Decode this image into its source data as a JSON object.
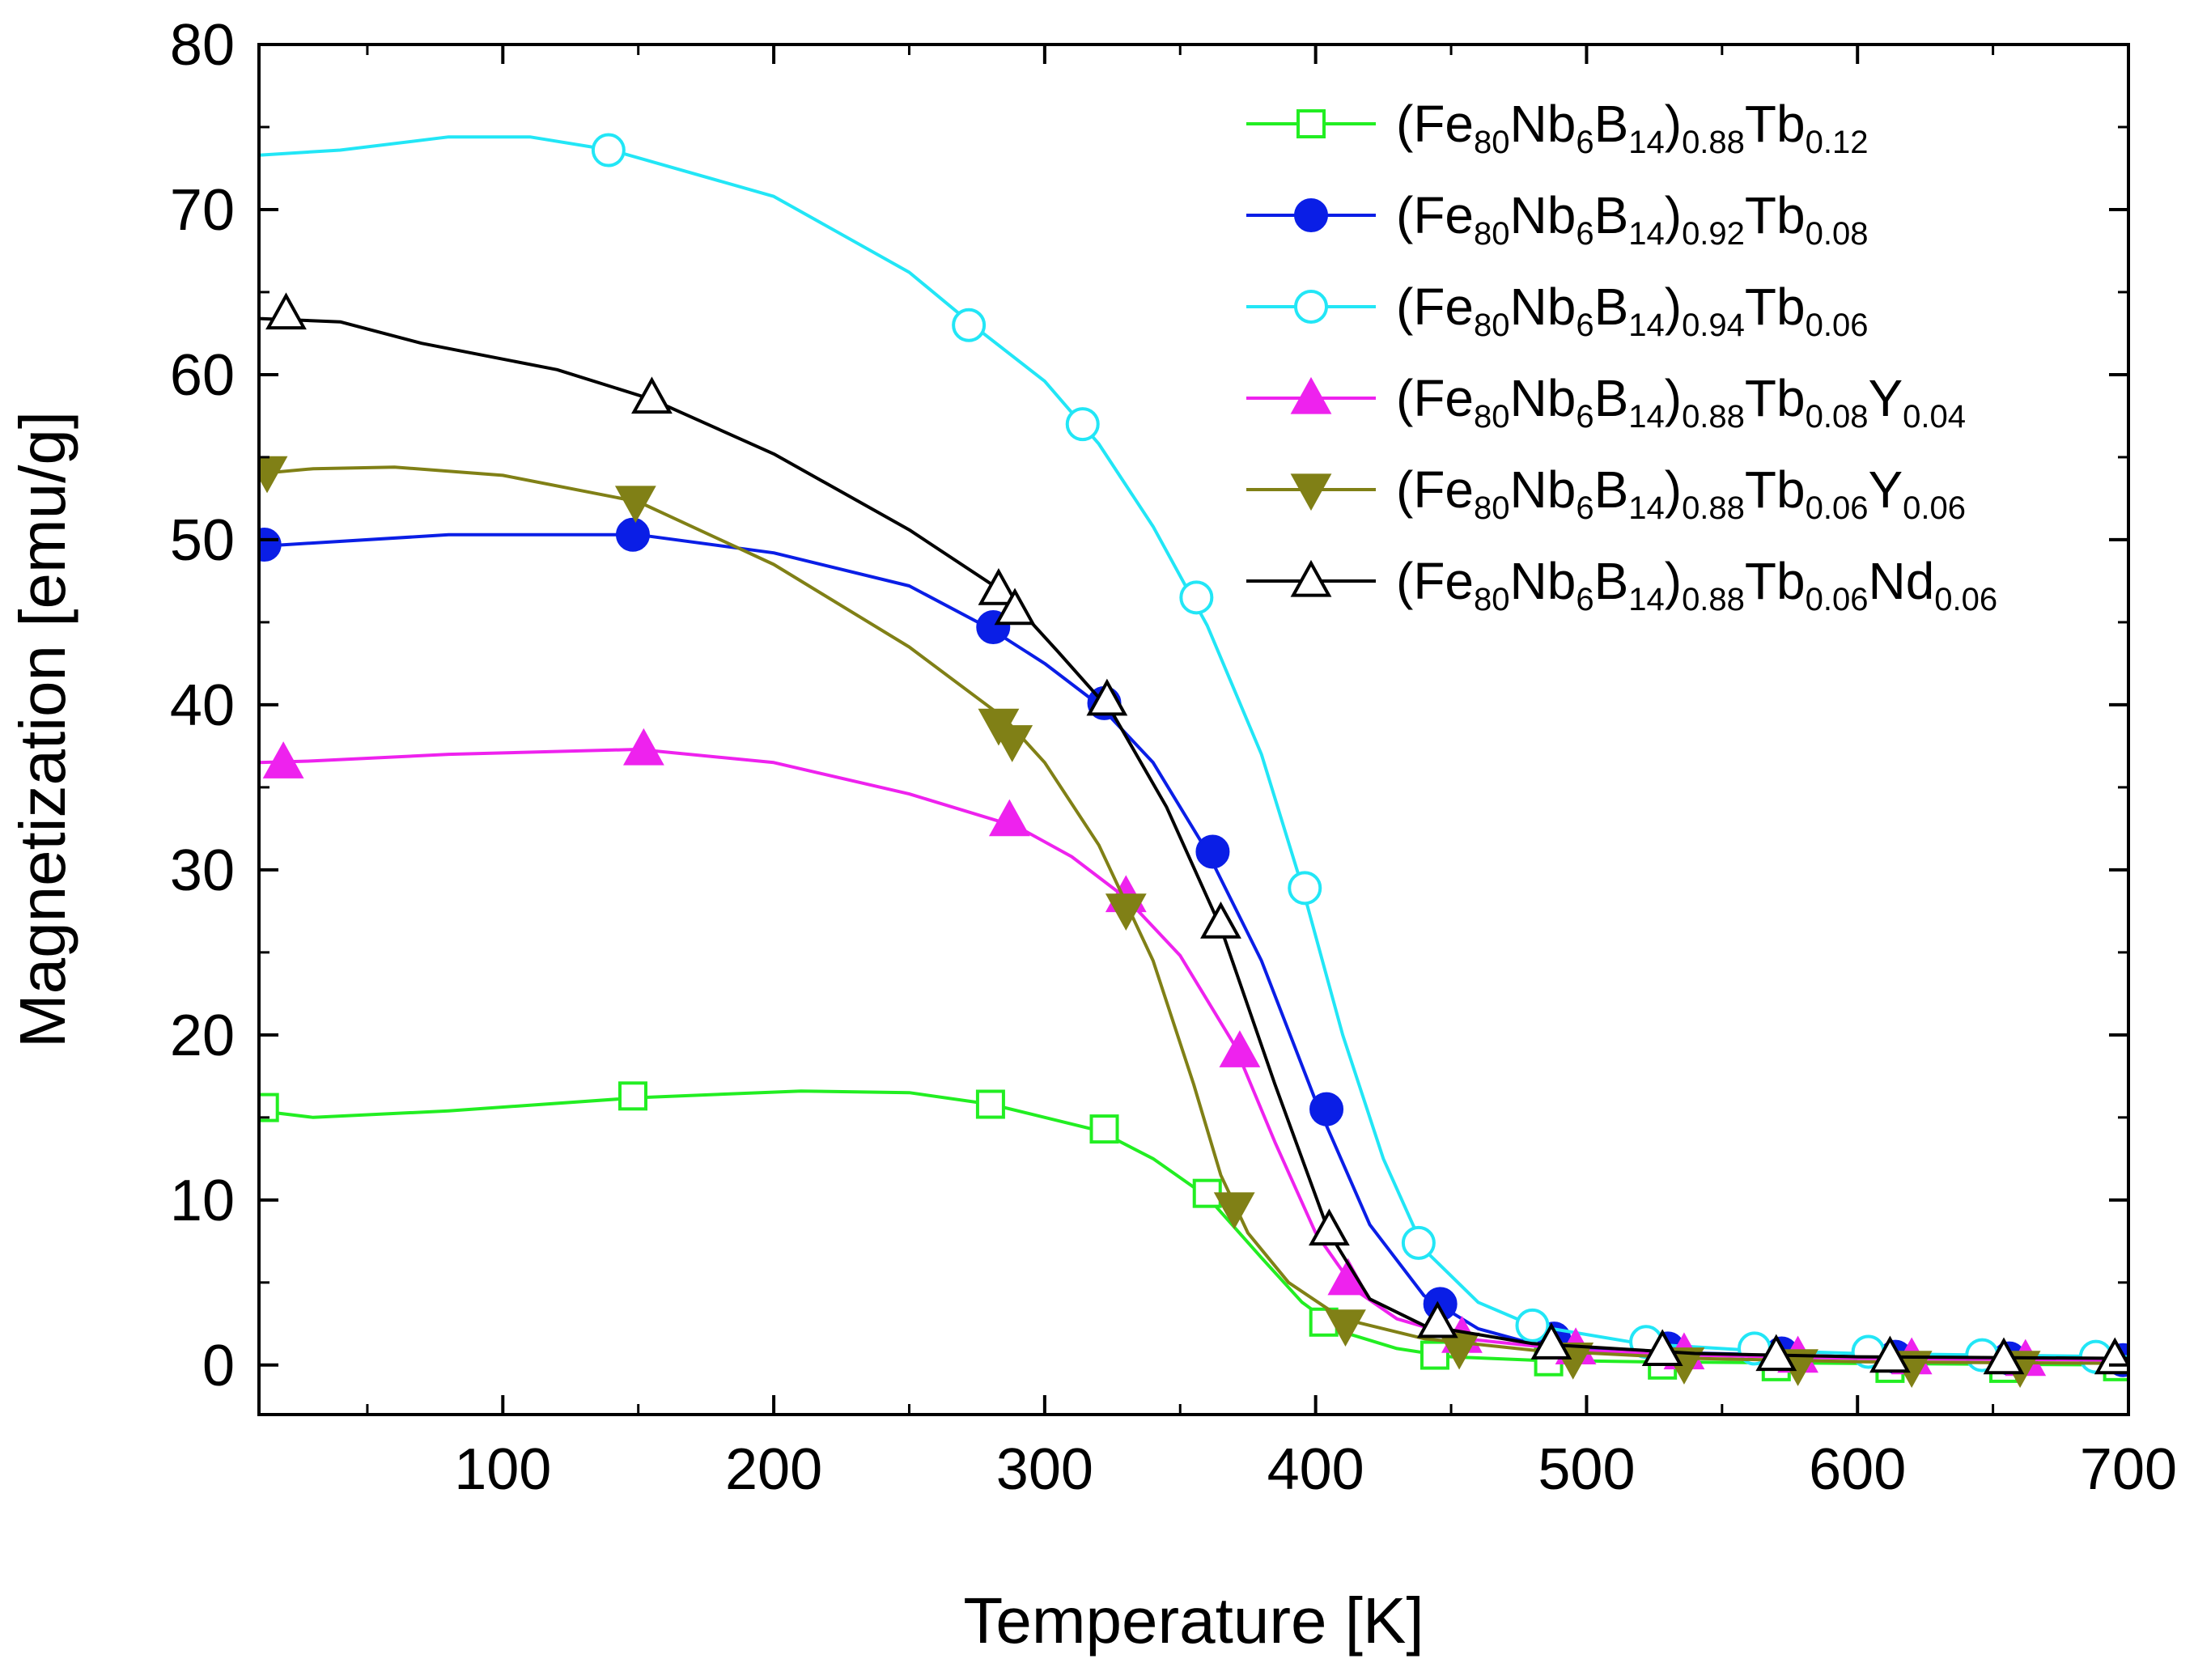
{
  "chart_data": {
    "type": "line",
    "title": "",
    "xlabel": "Temperature [K]",
    "ylabel": "Magnetization [emu/g]",
    "xlim": [
      10,
      700
    ],
    "ylim": [
      -3,
      80
    ],
    "xticks": [
      100,
      200,
      300,
      400,
      500,
      600,
      700
    ],
    "yticks": [
      0,
      10,
      20,
      30,
      40,
      50,
      60,
      70,
      80
    ],
    "xtick_labels": [
      "100",
      "200",
      "300",
      "400",
      "500",
      "600",
      "700"
    ],
    "ytick_labels": [
      "0",
      "10",
      "20",
      "30",
      "40",
      "50",
      "60",
      "70",
      "80"
    ],
    "grid": false,
    "legend_position": "top-right",
    "series": [
      {
        "name": "(Fe80Nb6B14)0.88Tb0.12",
        "legend_parts": [
          [
            "(Fe",
            ""
          ],
          [
            "80",
            "sub"
          ],
          [
            "Nb",
            ""
          ],
          [
            "6",
            "sub"
          ],
          [
            "B",
            ""
          ],
          [
            "14",
            "sub"
          ],
          [
            ")",
            ""
          ],
          [
            "0.88",
            "sub"
          ],
          [
            "Tb",
            ""
          ],
          [
            "0.12",
            "sub"
          ]
        ],
        "color": "#22ee22",
        "marker": "square-open",
        "line": [
          [
            10,
            15.4
          ],
          [
            30,
            15.0
          ],
          [
            80,
            15.4
          ],
          [
            150,
            16.2
          ],
          [
            210,
            16.6
          ],
          [
            250,
            16.5
          ],
          [
            280,
            15.8
          ],
          [
            300,
            15.0
          ],
          [
            320,
            14.2
          ],
          [
            340,
            12.5
          ],
          [
            360,
            10.2
          ],
          [
            380,
            6.5
          ],
          [
            395,
            3.8
          ],
          [
            410,
            2.0
          ],
          [
            430,
            1.0
          ],
          [
            450,
            0.5
          ],
          [
            480,
            0.3
          ],
          [
            520,
            0.2
          ],
          [
            600,
            0.1
          ],
          [
            700,
            0.0
          ]
        ],
        "points": [
          [
            12,
            15.6
          ],
          [
            148,
            16.3
          ],
          [
            280,
            15.8
          ],
          [
            322,
            14.3
          ],
          [
            360,
            10.4
          ],
          [
            403,
            2.6
          ],
          [
            444,
            0.6
          ],
          [
            486,
            0.2
          ],
          [
            528,
            0.0
          ],
          [
            570,
            -0.1
          ],
          [
            612,
            -0.2
          ],
          [
            654,
            -0.2
          ],
          [
            696,
            -0.1
          ]
        ]
      },
      {
        "name": "(Fe80Nb6B14)0.92Tb0.08",
        "legend_parts": [
          [
            "(Fe",
            ""
          ],
          [
            "80",
            "sub"
          ],
          [
            "Nb",
            ""
          ],
          [
            "6",
            "sub"
          ],
          [
            "B",
            ""
          ],
          [
            "14",
            "sub"
          ],
          [
            ")",
            ""
          ],
          [
            "0.92",
            "sub"
          ],
          [
            "Tb",
            ""
          ],
          [
            "0.08",
            "sub"
          ]
        ],
        "color": "#0a1ee6",
        "marker": "circle-filled",
        "line": [
          [
            10,
            49.6
          ],
          [
            30,
            49.8
          ],
          [
            80,
            50.3
          ],
          [
            150,
            50.3
          ],
          [
            200,
            49.2
          ],
          [
            250,
            47.2
          ],
          [
            280,
            44.6
          ],
          [
            300,
            42.5
          ],
          [
            320,
            40.0
          ],
          [
            340,
            36.5
          ],
          [
            360,
            31.1
          ],
          [
            380,
            24.5
          ],
          [
            400,
            16.0
          ],
          [
            420,
            8.5
          ],
          [
            440,
            4.2
          ],
          [
            460,
            2.2
          ],
          [
            480,
            1.3
          ],
          [
            520,
            0.8
          ],
          [
            600,
            0.5
          ],
          [
            700,
            0.4
          ]
        ],
        "points": [
          [
            12,
            49.7
          ],
          [
            148,
            50.3
          ],
          [
            281,
            44.7
          ],
          [
            322,
            40.1
          ],
          [
            362,
            31.1
          ],
          [
            404,
            15.5
          ],
          [
            446,
            3.7
          ],
          [
            488,
            1.6
          ],
          [
            530,
            1.0
          ],
          [
            572,
            0.7
          ],
          [
            614,
            0.5
          ],
          [
            656,
            0.4
          ],
          [
            698,
            0.3
          ]
        ]
      },
      {
        "name": "(Fe80Nb6B14)0.94Tb0.06",
        "legend_parts": [
          [
            "(Fe",
            ""
          ],
          [
            "80",
            "sub"
          ],
          [
            "Nb",
            ""
          ],
          [
            "6",
            "sub"
          ],
          [
            "B",
            ""
          ],
          [
            "14",
            "sub"
          ],
          [
            ")",
            ""
          ],
          [
            "0.94",
            "sub"
          ],
          [
            "Tb",
            ""
          ],
          [
            "0.06",
            "sub"
          ]
        ],
        "color": "#22e6f6",
        "marker": "circle-open",
        "line": [
          [
            10,
            73.3
          ],
          [
            40,
            73.6
          ],
          [
            80,
            74.4
          ],
          [
            110,
            74.4
          ],
          [
            140,
            73.6
          ],
          [
            200,
            70.8
          ],
          [
            250,
            66.2
          ],
          [
            275,
            62.8
          ],
          [
            300,
            59.6
          ],
          [
            320,
            55.8
          ],
          [
            340,
            50.8
          ],
          [
            360,
            44.8
          ],
          [
            380,
            37.0
          ],
          [
            395,
            29.0
          ],
          [
            410,
            20.0
          ],
          [
            425,
            12.5
          ],
          [
            440,
            7.0
          ],
          [
            460,
            3.8
          ],
          [
            480,
            2.4
          ],
          [
            520,
            1.3
          ],
          [
            560,
            0.9
          ],
          [
            600,
            0.7
          ],
          [
            700,
            0.5
          ]
        ],
        "points": [
          [
            139,
            73.6
          ],
          [
            272,
            63.0
          ],
          [
            314,
            57.0
          ],
          [
            356,
            46.5
          ],
          [
            396,
            28.9
          ],
          [
            438,
            7.4
          ],
          [
            480,
            2.4
          ],
          [
            522,
            1.4
          ],
          [
            562,
            1.0
          ],
          [
            604,
            0.8
          ],
          [
            646,
            0.6
          ],
          [
            688,
            0.5
          ]
        ]
      },
      {
        "name": "(Fe80Nb6B14)0.88Tb0.08Y0.04",
        "legend_parts": [
          [
            "(Fe",
            ""
          ],
          [
            "80",
            "sub"
          ],
          [
            "Nb",
            ""
          ],
          [
            "6",
            "sub"
          ],
          [
            "B",
            ""
          ],
          [
            "14",
            "sub"
          ],
          [
            ")",
            ""
          ],
          [
            "0.88",
            "sub"
          ],
          [
            "Tb",
            ""
          ],
          [
            "0.08",
            "sub"
          ],
          [
            "Y",
            ""
          ],
          [
            "0.04",
            "sub"
          ]
        ],
        "color": "#ee22ee",
        "marker": "triangle-up-filled",
        "line": [
          [
            10,
            36.5
          ],
          [
            30,
            36.6
          ],
          [
            80,
            37.0
          ],
          [
            150,
            37.3
          ],
          [
            200,
            36.5
          ],
          [
            250,
            34.6
          ],
          [
            290,
            32.6
          ],
          [
            310,
            30.8
          ],
          [
            330,
            28.3
          ],
          [
            350,
            24.8
          ],
          [
            370,
            19.4
          ],
          [
            385,
            13.5
          ],
          [
            400,
            8.0
          ],
          [
            415,
            4.5
          ],
          [
            430,
            2.8
          ],
          [
            455,
            1.6
          ],
          [
            495,
            0.9
          ],
          [
            540,
            0.6
          ],
          [
            600,
            0.4
          ],
          [
            700,
            0.3
          ]
        ],
        "points": [
          [
            19,
            36.5
          ],
          [
            152,
            37.3
          ],
          [
            287,
            33.0
          ],
          [
            330,
            28.4
          ],
          [
            372,
            19.0
          ],
          [
            412,
            5.2
          ],
          [
            454,
            1.7
          ],
          [
            496,
            1.0
          ],
          [
            536,
            0.7
          ],
          [
            578,
            0.5
          ],
          [
            620,
            0.4
          ],
          [
            662,
            0.3
          ]
        ]
      },
      {
        "name": "(Fe80Nb6B14)0.88Tb0.06Y0.06",
        "legend_parts": [
          [
            "(Fe",
            ""
          ],
          [
            "80",
            "sub"
          ],
          [
            "Nb",
            ""
          ],
          [
            "6",
            "sub"
          ],
          [
            "B",
            ""
          ],
          [
            "14",
            "sub"
          ],
          [
            ")",
            ""
          ],
          [
            "0.88",
            "sub"
          ],
          [
            "Tb",
            ""
          ],
          [
            "0.06",
            "sub"
          ],
          [
            "Y",
            ""
          ],
          [
            "0.06",
            "sub"
          ]
        ],
        "color": "#808016",
        "marker": "triangle-down-filled",
        "line": [
          [
            10,
            54.0
          ],
          [
            30,
            54.3
          ],
          [
            60,
            54.4
          ],
          [
            100,
            53.9
          ],
          [
            150,
            52.3
          ],
          [
            200,
            48.5
          ],
          [
            250,
            43.5
          ],
          [
            285,
            39.2
          ],
          [
            300,
            36.5
          ],
          [
            320,
            31.5
          ],
          [
            340,
            24.5
          ],
          [
            355,
            17.0
          ],
          [
            365,
            11.5
          ],
          [
            375,
            8.0
          ],
          [
            390,
            5.0
          ],
          [
            410,
            2.8
          ],
          [
            440,
            1.6
          ],
          [
            480,
            0.9
          ],
          [
            540,
            0.4
          ],
          [
            600,
            0.2
          ],
          [
            700,
            0.1
          ]
        ],
        "points": [
          [
            13,
            54.1
          ],
          [
            149,
            52.3
          ],
          [
            283,
            38.8
          ],
          [
            288,
            37.8
          ],
          [
            330,
            27.6
          ],
          [
            370,
            9.5
          ],
          [
            411,
            2.4
          ],
          [
            453,
            1.0
          ],
          [
            495,
            0.4
          ],
          [
            536,
            0.1
          ],
          [
            578,
            0.0
          ],
          [
            620,
            -0.1
          ],
          [
            660,
            -0.1
          ]
        ]
      },
      {
        "name": "(Fe80Nb6B14)0.88Tb0.06Nd0.06",
        "legend_parts": [
          [
            "(Fe",
            ""
          ],
          [
            "80",
            "sub"
          ],
          [
            "Nb",
            ""
          ],
          [
            "6",
            "sub"
          ],
          [
            "B",
            ""
          ],
          [
            "14",
            "sub"
          ],
          [
            ")",
            ""
          ],
          [
            "0.88",
            "sub"
          ],
          [
            "Tb",
            ""
          ],
          [
            "0.06",
            "sub"
          ],
          [
            "Nd",
            ""
          ],
          [
            "0.06",
            "sub"
          ]
        ],
        "color": "#000000",
        "marker": "triangle-up-open",
        "line": [
          [
            10,
            63.4
          ],
          [
            40,
            63.2
          ],
          [
            70,
            61.9
          ],
          [
            120,
            60.3
          ],
          [
            155,
            58.5
          ],
          [
            200,
            55.2
          ],
          [
            250,
            50.6
          ],
          [
            285,
            46.8
          ],
          [
            305,
            43.2
          ],
          [
            325,
            39.5
          ],
          [
            345,
            33.8
          ],
          [
            365,
            26.5
          ],
          [
            385,
            17.0
          ],
          [
            405,
            8.0
          ],
          [
            420,
            4.0
          ],
          [
            440,
            2.4
          ],
          [
            480,
            1.3
          ],
          [
            540,
            0.7
          ],
          [
            600,
            0.5
          ],
          [
            700,
            0.4
          ]
        ],
        "points": [
          [
            20,
            63.7
          ],
          [
            155,
            58.6
          ],
          [
            283,
            47.0
          ],
          [
            289,
            45.8
          ],
          [
            323,
            40.3
          ],
          [
            365,
            26.8
          ],
          [
            405,
            8.2
          ],
          [
            445,
            2.6
          ],
          [
            487,
            1.3
          ],
          [
            528,
            0.9
          ],
          [
            570,
            0.6
          ],
          [
            612,
            0.5
          ],
          [
            654,
            0.4
          ],
          [
            695,
            0.4
          ]
        ]
      }
    ]
  }
}
